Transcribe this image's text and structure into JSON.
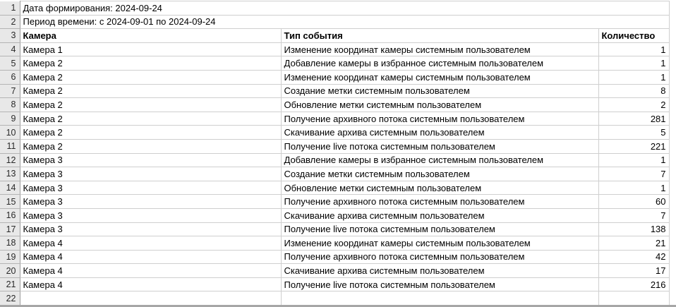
{
  "sheet": {
    "info_rows": [
      {
        "num": "1",
        "text": "Дата формирования: 2024-09-24"
      },
      {
        "num": "2",
        "text": "Период времени: с 2024-09-01 по 2024-09-24"
      }
    ],
    "header_row": {
      "num": "3",
      "camera": "Камера",
      "event": "Тип события",
      "count": "Количество"
    },
    "data_rows": [
      {
        "num": "4",
        "camera": "Камера 1",
        "event": "Изменение координат камеры системным пользователем",
        "count": "1"
      },
      {
        "num": "5",
        "camera": "Камера 2",
        "event": "Добавление камеры в избранное системным пользователем",
        "count": "1"
      },
      {
        "num": "6",
        "camera": "Камера 2",
        "event": "Изменение координат камеры системным пользователем",
        "count": "1"
      },
      {
        "num": "7",
        "camera": "Камера 2",
        "event": "Создание метки системным пользователем",
        "count": "8"
      },
      {
        "num": "8",
        "camera": "Камера 2",
        "event": "Обновление метки системным пользователем",
        "count": "2"
      },
      {
        "num": "9",
        "camera": "Камера 2",
        "event": "Получение архивного потока системным пользователем",
        "count": "281"
      },
      {
        "num": "10",
        "camera": "Камера 2",
        "event": "Скачивание архива системным пользователем",
        "count": "5"
      },
      {
        "num": "11",
        "camera": "Камера 2",
        "event": "Получение live потока системным пользователем",
        "count": "221"
      },
      {
        "num": "12",
        "camera": "Камера 3",
        "event": "Добавление камеры в избранное системным пользователем",
        "count": "1"
      },
      {
        "num": "13",
        "camera": "Камера 3",
        "event": "Создание метки системным пользователем",
        "count": "7"
      },
      {
        "num": "14",
        "camera": "Камера 3",
        "event": "Обновление метки системным пользователем",
        "count": "1"
      },
      {
        "num": "15",
        "camera": "Камера 3",
        "event": "Получение архивного потока системным пользователем",
        "count": "60"
      },
      {
        "num": "16",
        "camera": "Камера 3",
        "event": "Скачивание архива системным пользователем",
        "count": "7"
      },
      {
        "num": "17",
        "camera": "Камера 3",
        "event": "Получение live потока системным пользователем",
        "count": "138"
      },
      {
        "num": "18",
        "camera": "Камера 4",
        "event": "Изменение координат камеры системным пользователем",
        "count": "21"
      },
      {
        "num": "19",
        "camera": "Камера 4",
        "event": "Получение архивного потока системным пользователем",
        "count": "42"
      },
      {
        "num": "20",
        "camera": "Камера 4",
        "event": "Скачивание архива системным пользователем",
        "count": "17"
      },
      {
        "num": "21",
        "camera": "Камера 4",
        "event": "Получение live потока системным пользователем",
        "count": "216"
      }
    ],
    "trailing_row": {
      "num": "22"
    }
  },
  "colors": {
    "gutter_bg": "#e8e8e8",
    "gutter_separator": "#9e9e9e",
    "gutter_line": "#b4b4b4",
    "cell_border": "#cfcfcf",
    "bottom_strip": "#a6a6a6"
  }
}
